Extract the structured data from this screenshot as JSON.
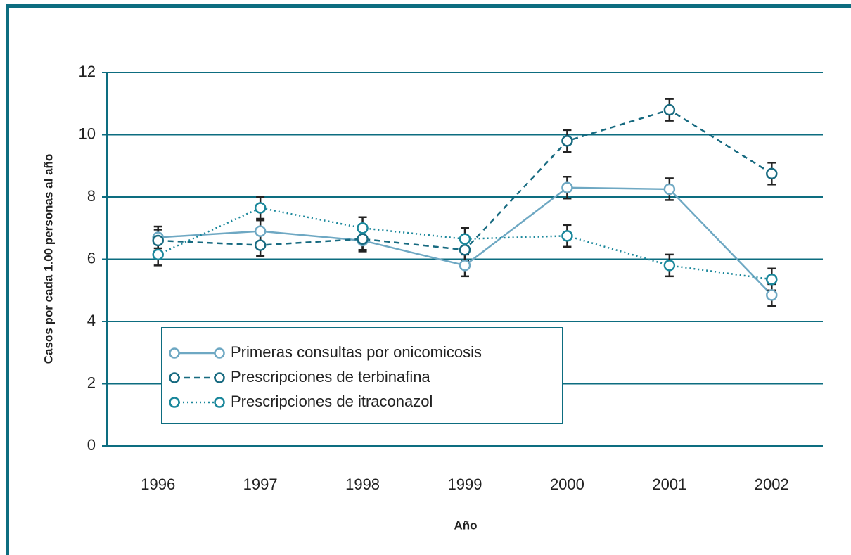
{
  "chart_data": {
    "type": "line",
    "y_label": "Casos por cada 1.00 personas al año",
    "x_label": "Año",
    "categories": [
      "1996",
      "1997",
      "1998",
      "1999",
      "2000",
      "2001",
      "2002"
    ],
    "series": [
      {
        "name": "Primeras consultas por onicomicosis",
        "color": "#6ea8c3",
        "dash": "solid",
        "values": [
          6.7,
          6.9,
          6.6,
          5.8,
          8.3,
          8.25,
          4.85
        ],
        "errors": [
          0.35,
          0.35,
          0.35,
          0.35,
          0.35,
          0.35,
          0.35
        ]
      },
      {
        "name": "Prescripciones de terbinafina",
        "color": "#176a80",
        "dash": "dashed",
        "values": [
          6.6,
          6.45,
          6.65,
          6.3,
          9.8,
          10.8,
          8.75
        ],
        "errors": [
          0.35,
          0.35,
          0.35,
          0.35,
          0.35,
          0.35,
          0.35
        ]
      },
      {
        "name": "Prescripciones de itraconazol",
        "color": "#1a879b",
        "dash": "dotted",
        "values": [
          6.15,
          7.65,
          7.0,
          6.65,
          6.75,
          5.8,
          5.35
        ],
        "errors": [
          0.35,
          0.35,
          0.35,
          0.35,
          0.35,
          0.35,
          0.35
        ]
      }
    ],
    "ylim": [
      0,
      12
    ],
    "yticks": [
      0,
      2,
      4,
      6,
      8,
      10,
      12
    ],
    "grid": true
  }
}
